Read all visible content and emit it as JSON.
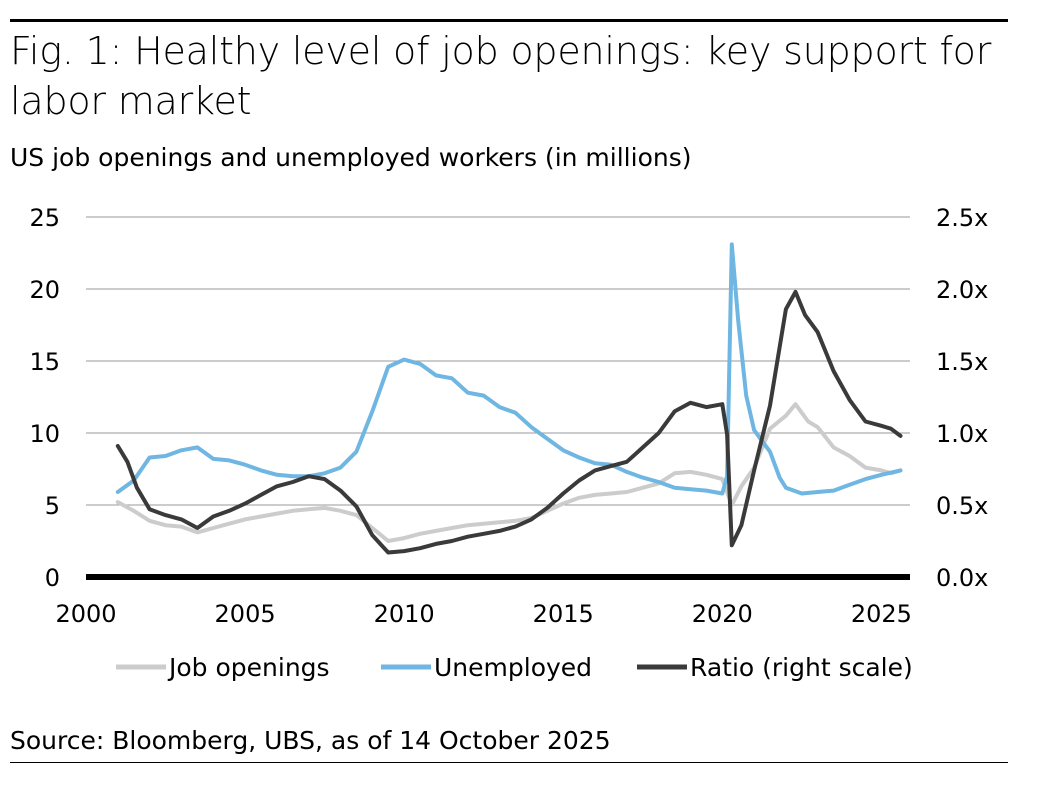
{
  "title": "Fig. 1: Healthy level of job openings: key support for labor market",
  "subtitle": "US job openings and unemployed workers (in millions)",
  "source": "Source: Bloomberg, UBS, as of 14 October 2025",
  "colors": {
    "job_openings": "#cccccc",
    "unemployed": "#6fb6e3",
    "ratio": "#3a3a3a",
    "grid": "#999999",
    "axis": "#000000"
  },
  "chart_data": {
    "type": "line",
    "title": "Fig. 1: Healthy level of job openings: key support for labor market",
    "subtitle": "US job openings and unemployed workers (in millions)",
    "xlabel": "",
    "ylabel": "",
    "xlim": [
      2000,
      2025.9
    ],
    "ylim_left": [
      0,
      25
    ],
    "ylim_right": [
      0,
      2.5
    ],
    "x_ticks": [
      2000,
      2005,
      2010,
      2015,
      2020,
      2025
    ],
    "x_tick_labels": [
      "2000",
      "2005",
      "2010",
      "2015",
      "2020",
      "2025"
    ],
    "y_left_ticks": [
      0,
      5,
      10,
      15,
      20,
      25
    ],
    "y_left_tick_labels": [
      "0",
      "5",
      "10",
      "15",
      "20",
      "25"
    ],
    "y_right_ticks": [
      0,
      0.5,
      1.0,
      1.5,
      2.0,
      2.5
    ],
    "y_right_tick_labels": [
      "0.0x",
      "0.5x",
      "1.0x",
      "1.5x",
      "2.0x",
      "2.5x"
    ],
    "grid": true,
    "legend_position": "bottom",
    "series": [
      {
        "name": "Job openings",
        "axis": "left",
        "color": "#cccccc",
        "points": [
          [
            2001.0,
            5.2
          ],
          [
            2001.5,
            4.6
          ],
          [
            2002.0,
            3.9
          ],
          [
            2002.5,
            3.6
          ],
          [
            2003.0,
            3.5
          ],
          [
            2003.5,
            3.1
          ],
          [
            2004.0,
            3.4
          ],
          [
            2004.5,
            3.7
          ],
          [
            2005.0,
            4.0
          ],
          [
            2005.5,
            4.2
          ],
          [
            2006.0,
            4.4
          ],
          [
            2006.5,
            4.6
          ],
          [
            2007.0,
            4.7
          ],
          [
            2007.5,
            4.8
          ],
          [
            2008.0,
            4.6
          ],
          [
            2008.5,
            4.3
          ],
          [
            2009.0,
            3.4
          ],
          [
            2009.5,
            2.5
          ],
          [
            2010.0,
            2.7
          ],
          [
            2010.5,
            3.0
          ],
          [
            2011.0,
            3.2
          ],
          [
            2011.5,
            3.4
          ],
          [
            2012.0,
            3.6
          ],
          [
            2012.5,
            3.7
          ],
          [
            2013.0,
            3.8
          ],
          [
            2013.5,
            3.9
          ],
          [
            2014.0,
            4.1
          ],
          [
            2014.5,
            4.6
          ],
          [
            2015.0,
            5.1
          ],
          [
            2015.5,
            5.5
          ],
          [
            2016.0,
            5.7
          ],
          [
            2016.5,
            5.8
          ],
          [
            2017.0,
            5.9
          ],
          [
            2017.5,
            6.2
          ],
          [
            2018.0,
            6.5
          ],
          [
            2018.5,
            7.2
          ],
          [
            2019.0,
            7.3
          ],
          [
            2019.5,
            7.1
          ],
          [
            2020.0,
            6.8
          ],
          [
            2020.3,
            5.0
          ],
          [
            2020.6,
            6.3
          ],
          [
            2021.0,
            7.6
          ],
          [
            2021.5,
            10.3
          ],
          [
            2022.0,
            11.2
          ],
          [
            2022.3,
            12.0
          ],
          [
            2022.7,
            10.8
          ],
          [
            2023.0,
            10.4
          ],
          [
            2023.5,
            9.0
          ],
          [
            2024.0,
            8.4
          ],
          [
            2024.5,
            7.6
          ],
          [
            2025.0,
            7.4
          ],
          [
            2025.3,
            7.2
          ],
          [
            2025.6,
            7.4
          ]
        ]
      },
      {
        "name": "Unemployed",
        "axis": "left",
        "color": "#6fb6e3",
        "points": [
          [
            2001.0,
            5.9
          ],
          [
            2001.5,
            6.7
          ],
          [
            2002.0,
            8.3
          ],
          [
            2002.5,
            8.4
          ],
          [
            2003.0,
            8.8
          ],
          [
            2003.5,
            9.0
          ],
          [
            2004.0,
            8.2
          ],
          [
            2004.5,
            8.1
          ],
          [
            2005.0,
            7.8
          ],
          [
            2005.5,
            7.4
          ],
          [
            2006.0,
            7.1
          ],
          [
            2006.5,
            7.0
          ],
          [
            2007.0,
            7.0
          ],
          [
            2007.5,
            7.2
          ],
          [
            2008.0,
            7.6
          ],
          [
            2008.5,
            8.7
          ],
          [
            2009.0,
            11.5
          ],
          [
            2009.5,
            14.6
          ],
          [
            2010.0,
            15.1
          ],
          [
            2010.5,
            14.8
          ],
          [
            2011.0,
            14.0
          ],
          [
            2011.5,
            13.8
          ],
          [
            2012.0,
            12.8
          ],
          [
            2012.5,
            12.6
          ],
          [
            2013.0,
            11.8
          ],
          [
            2013.5,
            11.4
          ],
          [
            2014.0,
            10.4
          ],
          [
            2014.5,
            9.6
          ],
          [
            2015.0,
            8.8
          ],
          [
            2015.5,
            8.3
          ],
          [
            2016.0,
            7.9
          ],
          [
            2016.5,
            7.8
          ],
          [
            2017.0,
            7.3
          ],
          [
            2017.5,
            6.9
          ],
          [
            2018.0,
            6.6
          ],
          [
            2018.5,
            6.2
          ],
          [
            2019.0,
            6.1
          ],
          [
            2019.5,
            6.0
          ],
          [
            2020.0,
            5.8
          ],
          [
            2020.15,
            7.0
          ],
          [
            2020.3,
            23.1
          ],
          [
            2020.5,
            17.8
          ],
          [
            2020.75,
            12.6
          ],
          [
            2021.0,
            10.2
          ],
          [
            2021.5,
            8.7
          ],
          [
            2021.8,
            6.9
          ],
          [
            2022.0,
            6.2
          ],
          [
            2022.5,
            5.8
          ],
          [
            2023.0,
            5.9
          ],
          [
            2023.5,
            6.0
          ],
          [
            2024.0,
            6.4
          ],
          [
            2024.5,
            6.8
          ],
          [
            2025.0,
            7.1
          ],
          [
            2025.6,
            7.4
          ]
        ]
      },
      {
        "name": "Ratio (right scale)",
        "axis": "right",
        "color": "#3a3a3a",
        "points": [
          [
            2001.0,
            0.91
          ],
          [
            2001.3,
            0.8
          ],
          [
            2001.6,
            0.62
          ],
          [
            2002.0,
            0.47
          ],
          [
            2002.5,
            0.43
          ],
          [
            2003.0,
            0.4
          ],
          [
            2003.5,
            0.34
          ],
          [
            2004.0,
            0.42
          ],
          [
            2004.5,
            0.46
          ],
          [
            2005.0,
            0.51
          ],
          [
            2005.5,
            0.57
          ],
          [
            2006.0,
            0.63
          ],
          [
            2006.5,
            0.66
          ],
          [
            2007.0,
            0.7
          ],
          [
            2007.5,
            0.68
          ],
          [
            2008.0,
            0.6
          ],
          [
            2008.5,
            0.49
          ],
          [
            2009.0,
            0.29
          ],
          [
            2009.5,
            0.17
          ],
          [
            2010.0,
            0.18
          ],
          [
            2010.5,
            0.2
          ],
          [
            2011.0,
            0.23
          ],
          [
            2011.5,
            0.25
          ],
          [
            2012.0,
            0.28
          ],
          [
            2012.5,
            0.3
          ],
          [
            2013.0,
            0.32
          ],
          [
            2013.5,
            0.35
          ],
          [
            2014.0,
            0.4
          ],
          [
            2014.5,
            0.48
          ],
          [
            2015.0,
            0.58
          ],
          [
            2015.5,
            0.67
          ],
          [
            2016.0,
            0.74
          ],
          [
            2016.5,
            0.77
          ],
          [
            2017.0,
            0.8
          ],
          [
            2017.5,
            0.9
          ],
          [
            2018.0,
            1.0
          ],
          [
            2018.5,
            1.15
          ],
          [
            2019.0,
            1.21
          ],
          [
            2019.5,
            1.18
          ],
          [
            2020.0,
            1.2
          ],
          [
            2020.15,
            0.99
          ],
          [
            2020.3,
            0.22
          ],
          [
            2020.6,
            0.36
          ],
          [
            2021.0,
            0.74
          ],
          [
            2021.5,
            1.19
          ],
          [
            2022.0,
            1.86
          ],
          [
            2022.3,
            1.98
          ],
          [
            2022.6,
            1.82
          ],
          [
            2023.0,
            1.7
          ],
          [
            2023.5,
            1.43
          ],
          [
            2024.0,
            1.23
          ],
          [
            2024.5,
            1.08
          ],
          [
            2025.0,
            1.05
          ],
          [
            2025.3,
            1.03
          ],
          [
            2025.6,
            0.98
          ]
        ]
      }
    ]
  }
}
